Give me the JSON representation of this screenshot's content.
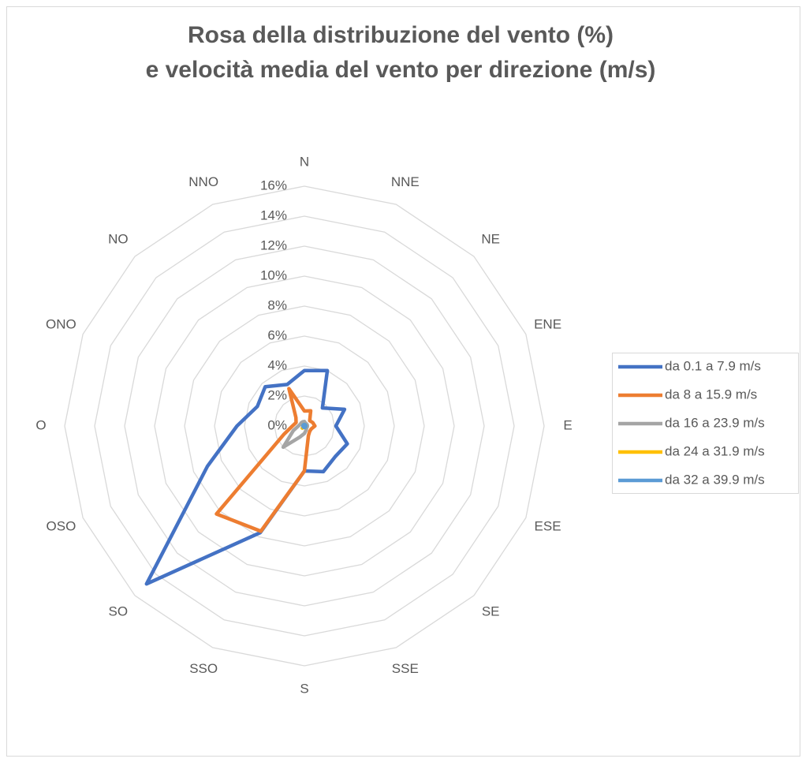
{
  "chart_data": {
    "type": "radar",
    "title": "Rosa della distribuzione del vento (%)",
    "subtitle": "e velocità media del vento per direzione (m/s)",
    "categories": [
      "N",
      "NNE",
      "NE",
      "ENE",
      "E",
      "ESE",
      "SE",
      "SSE",
      "S",
      "SSO",
      "SO",
      "OSO",
      "O",
      "ONO",
      "NO",
      "NNO"
    ],
    "series": [
      {
        "name": "da 0.1 a 7.9 m/s",
        "color": "#4472c4",
        "values": [
          3.7,
          4.0,
          1.7,
          2.9,
          2.1,
          3.1,
          2.9,
          3.3,
          3.0,
          7.7,
          14.9,
          7.0,
          4.5,
          3.4,
          3.7,
          3.0
        ]
      },
      {
        "name": "da 8 a 15.9 m/s",
        "color": "#ed7d31",
        "values": [
          1.0,
          1.1,
          0.5,
          0.6,
          0.7,
          0.5,
          0.5,
          0.7,
          3.0,
          7.6,
          8.3,
          1.5,
          0.8,
          0.6,
          0.8,
          2.7
        ]
      },
      {
        "name": "da 16 a 23.9 m/s",
        "color": "#a5a5a5",
        "values": [
          0.3,
          0.2,
          0.2,
          0.2,
          0.2,
          0.2,
          0.2,
          0.3,
          0.5,
          0.8,
          2.0,
          0.8,
          0.4,
          0.3,
          0.3,
          0.3
        ]
      },
      {
        "name": "da 24 a 31.9 m/s",
        "color": "#ffc000",
        "values": [
          0.1,
          0.1,
          0.1,
          0.1,
          0.1,
          0.1,
          0.1,
          0.1,
          0.1,
          0.1,
          0.2,
          0.1,
          0.1,
          0.1,
          0.1,
          0.1
        ]
      },
      {
        "name": "da 32 a 39.9 m/s",
        "color": "#5b9bd5",
        "values": [
          0.1,
          0.1,
          0.1,
          0.1,
          0.1,
          0.1,
          0.1,
          0.1,
          0.1,
          0.1,
          0.1,
          0.1,
          0.1,
          0.1,
          0.1,
          0.1
        ]
      }
    ],
    "ylim": [
      0,
      16
    ],
    "yticks": [
      {
        "value": 0,
        "label": "0%"
      },
      {
        "value": 2,
        "label": "2%"
      },
      {
        "value": 4,
        "label": "4%"
      },
      {
        "value": 6,
        "label": "6%"
      },
      {
        "value": 8,
        "label": "8%"
      },
      {
        "value": 10,
        "label": "10%"
      },
      {
        "value": 12,
        "label": "12%"
      },
      {
        "value": 14,
        "label": "14%"
      },
      {
        "value": 16,
        "label": "16%"
      }
    ],
    "grid": true,
    "legend": "right"
  }
}
